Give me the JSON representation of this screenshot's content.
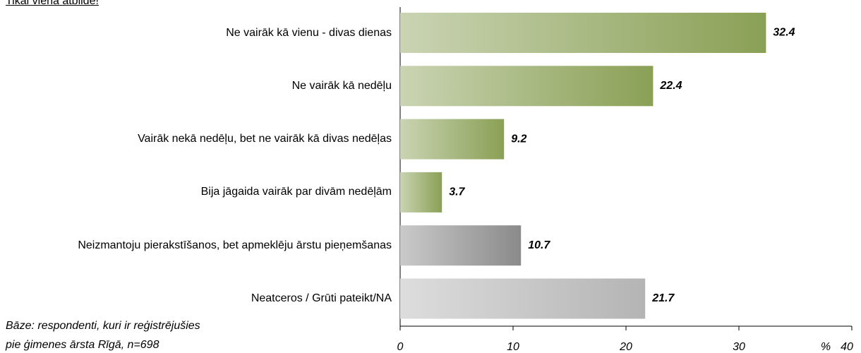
{
  "chart_data": {
    "type": "hbar",
    "subtitle": "Tikai viena atbilde!",
    "note": [
      "Bāze: respondenti, kuri ir reģistrējušies",
      "pie ģimenes ārsta Rīgā, n=698"
    ],
    "categories": [
      "Ne vairāk kā vienu - divas dienas",
      "Ne vairāk kā nedēļu",
      "Vairāk nekā nedēļu, bet ne vairāk kā divas nedēļas",
      "Bija jāgaida vairāk par divām nedēļām",
      "Neizmantoju pierakstīšanos, bet apmeklēju ārstu pieņemšanas",
      "Neatceros / Grūti pateikt/NA"
    ],
    "values": [
      32.4,
      22.4,
      9.2,
      3.7,
      10.7,
      21.7
    ],
    "colors": [
      "#8aa055",
      "#8aa055",
      "#8aa055",
      "#8aa055",
      "#8a8a8a",
      "#b4b4b4"
    ],
    "xlim": [
      0,
      40
    ],
    "xticks": [
      0,
      10,
      20,
      30,
      40
    ],
    "x_unit": "%"
  }
}
